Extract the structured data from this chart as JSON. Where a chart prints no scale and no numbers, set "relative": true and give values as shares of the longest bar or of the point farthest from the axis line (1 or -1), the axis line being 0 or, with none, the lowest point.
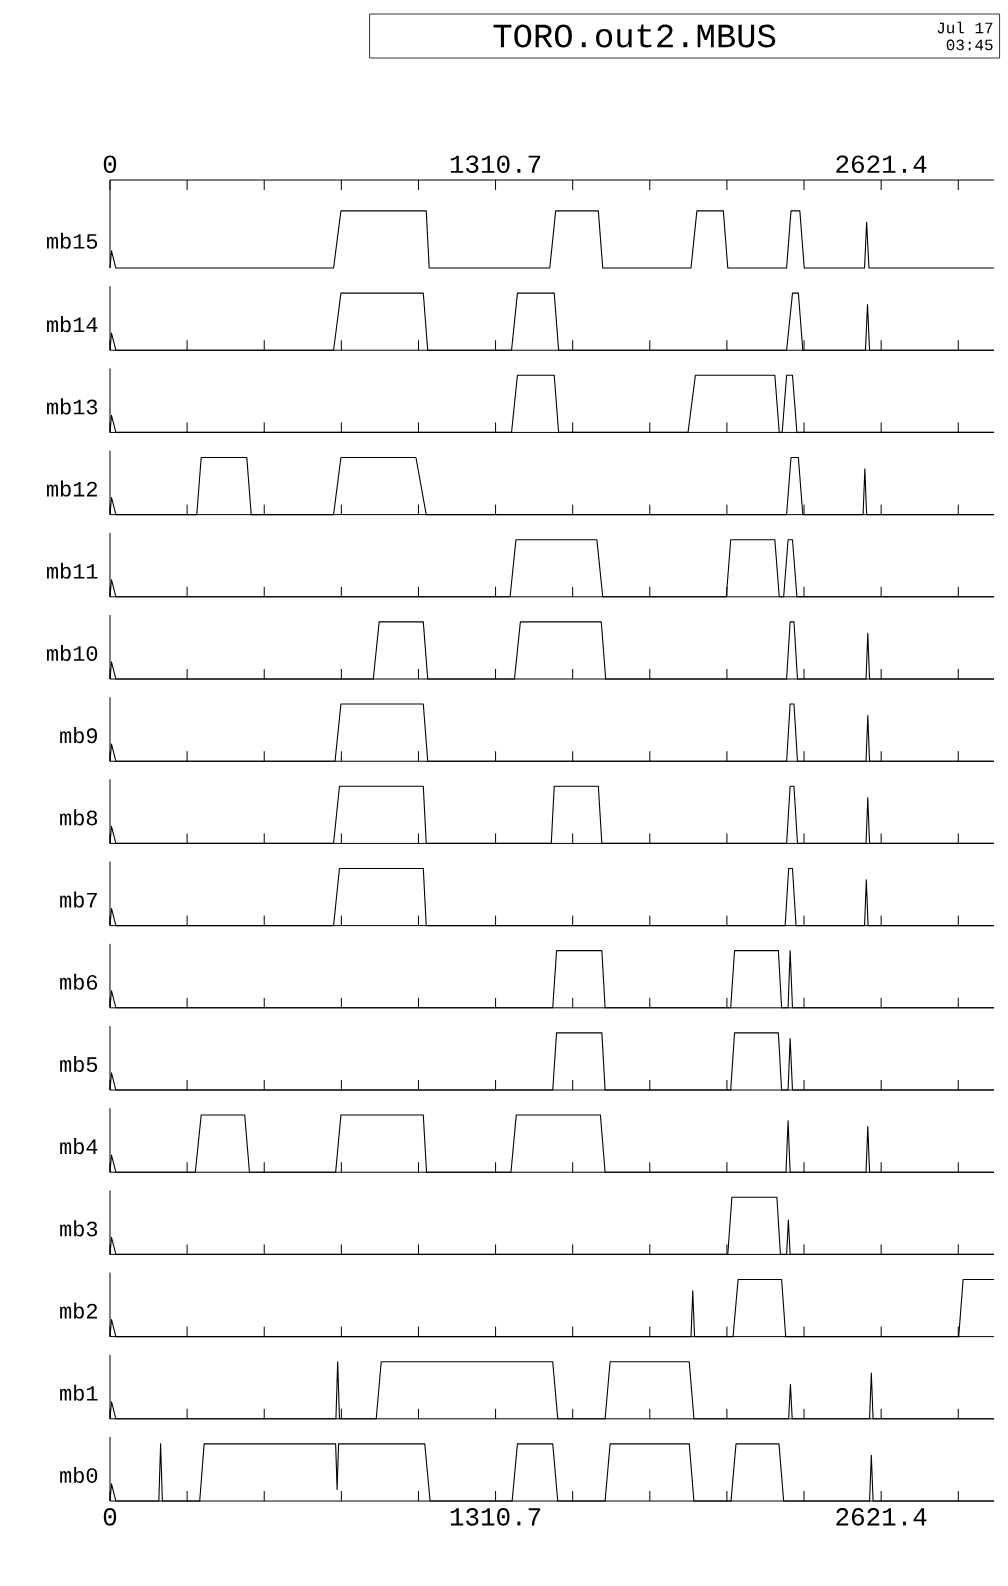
{
  "chart_data": [
    {
      "type": "line",
      "title": "TORO.out2.MBUS",
      "annotations": [
        "Jul 17",
        "03:45"
      ],
      "relative": true,
      "color": "#000000",
      "ylabel": "mb15",
      "tick_labels": "x",
      "xlim": [
        0,
        3005
      ],
      "xticks": [
        0,
        {
          "value": 262.14,
          "label": null
        },
        {
          "value": 524.28,
          "label": null
        },
        {
          "value": 786.42,
          "label": null
        },
        {
          "value": 1048.56,
          "label": null
        },
        1310.7,
        {
          "value": 1572.84,
          "label": null
        },
        {
          "value": 1834.98,
          "label": null
        },
        {
          "value": 2097.12,
          "label": null
        },
        {
          "value": 2359.26,
          "label": null
        },
        2621.4,
        {
          "value": 2883.54,
          "label": null
        }
      ],
      "x": [
        0,
        5,
        20,
        760,
        785,
        1075,
        1085,
        1495,
        1515,
        1660,
        1675,
        1975,
        1995,
        2085,
        2100,
        2300,
        2315,
        2345,
        2360,
        2565,
        2572,
        2580,
        3005
      ],
      "values": [
        0,
        0.3,
        0,
        0,
        1,
        1,
        0,
        0,
        1,
        1,
        0,
        0,
        1,
        1,
        0,
        0,
        1,
        1,
        0,
        0,
        0.8,
        0,
        0
      ]
    },
    {
      "type": "line",
      "relative": true,
      "color": "#000000",
      "ylabel": "mb14",
      "tick_labels": false,
      "xlim": [
        0,
        3005
      ],
      "xticks": [
        0,
        {
          "value": 262.14,
          "label": null
        },
        {
          "value": 524.28,
          "label": null
        },
        {
          "value": 786.42,
          "label": null
        },
        {
          "value": 1048.56,
          "label": null
        },
        1310.7,
        {
          "value": 1572.84,
          "label": null
        },
        {
          "value": 1834.98,
          "label": null
        },
        {
          "value": 2097.12,
          "label": null
        },
        {
          "value": 2359.26,
          "label": null
        },
        2621.4,
        {
          "value": 2883.54,
          "label": null
        }
      ],
      "x": [
        0,
        5,
        20,
        760,
        785,
        1065,
        1080,
        1365,
        1385,
        1510,
        1525,
        2300,
        2320,
        2340,
        2355,
        2568,
        2575,
        2582,
        3005
      ],
      "values": [
        0,
        0.3,
        0,
        0,
        1,
        1,
        0,
        0,
        1,
        1,
        0,
        0,
        1,
        1,
        0,
        0,
        0.8,
        0,
        0
      ]
    },
    {
      "type": "line",
      "relative": true,
      "color": "#000000",
      "ylabel": "mb13",
      "tick_labels": false,
      "xlim": [
        0,
        3005
      ],
      "xticks": [
        0,
        {
          "value": 262.14,
          "label": null
        },
        {
          "value": 524.28,
          "label": null
        },
        {
          "value": 786.42,
          "label": null
        },
        {
          "value": 1048.56,
          "label": null
        },
        1310.7,
        {
          "value": 1572.84,
          "label": null
        },
        {
          "value": 1834.98,
          "label": null
        },
        {
          "value": 2097.12,
          "label": null
        },
        {
          "value": 2359.26,
          "label": null
        },
        2621.4,
        {
          "value": 2883.54,
          "label": null
        }
      ],
      "x": [
        0,
        5,
        20,
        1365,
        1385,
        1510,
        1525,
        1965,
        1990,
        2260,
        2275,
        2285,
        2300,
        2320,
        2335,
        3005
      ],
      "values": [
        0,
        0.3,
        0,
        0,
        1,
        1,
        0,
        0,
        1,
        1,
        0,
        0,
        1,
        1,
        0,
        0
      ]
    },
    {
      "type": "line",
      "relative": true,
      "color": "#000000",
      "ylabel": "mb12",
      "tick_labels": false,
      "xlim": [
        0,
        3005
      ],
      "xticks": [
        0,
        {
          "value": 262.14,
          "label": null
        },
        {
          "value": 524.28,
          "label": null
        },
        {
          "value": 786.42,
          "label": null
        },
        {
          "value": 1048.56,
          "label": null
        },
        1310.7,
        {
          "value": 1572.84,
          "label": null
        },
        {
          "value": 1834.98,
          "label": null
        },
        {
          "value": 2097.12,
          "label": null
        },
        {
          "value": 2359.26,
          "label": null
        },
        2621.4,
        {
          "value": 2883.54,
          "label": null
        }
      ],
      "x": [
        0,
        5,
        20,
        295,
        310,
        465,
        480,
        760,
        785,
        1040,
        1075,
        2300,
        2315,
        2340,
        2355,
        2560,
        2566,
        2572,
        3005
      ],
      "values": [
        0,
        0.3,
        0,
        0,
        1,
        1,
        0,
        0,
        1,
        1,
        0,
        0,
        1,
        1,
        0,
        0,
        0.8,
        0,
        0
      ]
    },
    {
      "type": "line",
      "relative": true,
      "color": "#000000",
      "ylabel": "mb11",
      "tick_labels": false,
      "xlim": [
        0,
        3005
      ],
      "xticks": [
        0,
        {
          "value": 262.14,
          "label": null
        },
        {
          "value": 524.28,
          "label": null
        },
        {
          "value": 786.42,
          "label": null
        },
        {
          "value": 1048.56,
          "label": null
        },
        1310.7,
        {
          "value": 1572.84,
          "label": null
        },
        {
          "value": 1834.98,
          "label": null
        },
        {
          "value": 2097.12,
          "label": null
        },
        {
          "value": 2359.26,
          "label": null
        },
        2621.4,
        {
          "value": 2883.54,
          "label": null
        }
      ],
      "x": [
        0,
        5,
        20,
        1360,
        1380,
        1655,
        1675,
        2095,
        2110,
        2260,
        2275,
        2290,
        2305,
        2320,
        2335,
        3005
      ],
      "values": [
        0,
        0.3,
        0,
        0,
        1,
        1,
        0,
        0,
        1,
        1,
        0,
        0,
        1,
        1,
        0,
        0
      ]
    },
    {
      "type": "line",
      "relative": true,
      "color": "#000000",
      "ylabel": "mb10",
      "tick_labels": false,
      "xlim": [
        0,
        3005
      ],
      "xticks": [
        0,
        {
          "value": 262.14,
          "label": null
        },
        {
          "value": 524.28,
          "label": null
        },
        {
          "value": 786.42,
          "label": null
        },
        {
          "value": 1048.56,
          "label": null
        },
        1310.7,
        {
          "value": 1572.84,
          "label": null
        },
        {
          "value": 1834.98,
          "label": null
        },
        {
          "value": 2097.12,
          "label": null
        },
        {
          "value": 2359.26,
          "label": null
        },
        2621.4,
        {
          "value": 2883.54,
          "label": null
        }
      ],
      "x": [
        0,
        5,
        20,
        895,
        915,
        1065,
        1080,
        1375,
        1395,
        1670,
        1685,
        2300,
        2312,
        2325,
        2337,
        2570,
        2576,
        2582,
        3005
      ],
      "values": [
        0,
        0.3,
        0,
        0,
        1,
        1,
        0,
        0,
        1,
        1,
        0,
        0,
        1,
        1,
        0,
        0,
        0.8,
        0,
        0
      ]
    },
    {
      "type": "line",
      "relative": true,
      "color": "#000000",
      "ylabel": "mb9",
      "tick_labels": false,
      "xlim": [
        0,
        3005
      ],
      "xticks": [
        0,
        {
          "value": 262.14,
          "label": null
        },
        {
          "value": 524.28,
          "label": null
        },
        {
          "value": 786.42,
          "label": null
        },
        {
          "value": 1048.56,
          "label": null
        },
        1310.7,
        {
          "value": 1572.84,
          "label": null
        },
        {
          "value": 1834.98,
          "label": null
        },
        {
          "value": 2097.12,
          "label": null
        },
        {
          "value": 2359.26,
          "label": null
        },
        2621.4,
        {
          "value": 2883.54,
          "label": null
        }
      ],
      "x": [
        0,
        5,
        20,
        765,
        785,
        1065,
        1080,
        2300,
        2312,
        2325,
        2337,
        2570,
        2576,
        2582,
        3005
      ],
      "values": [
        0,
        0.3,
        0,
        0,
        1,
        1,
        0,
        0,
        1,
        1,
        0,
        0,
        0.8,
        0,
        0
      ]
    },
    {
      "type": "line",
      "relative": true,
      "color": "#000000",
      "ylabel": "mb8",
      "tick_labels": false,
      "xlim": [
        0,
        3005
      ],
      "xticks": [
        0,
        {
          "value": 262.14,
          "label": null
        },
        {
          "value": 524.28,
          "label": null
        },
        {
          "value": 786.42,
          "label": null
        },
        {
          "value": 1048.56,
          "label": null
        },
        1310.7,
        {
          "value": 1572.84,
          "label": null
        },
        {
          "value": 1834.98,
          "label": null
        },
        {
          "value": 2097.12,
          "label": null
        },
        {
          "value": 2359.26,
          "label": null
        },
        2621.4,
        {
          "value": 2883.54,
          "label": null
        }
      ],
      "x": [
        0,
        5,
        20,
        760,
        780,
        1065,
        1075,
        1500,
        1510,
        1660,
        1672,
        2300,
        2312,
        2325,
        2337,
        2570,
        2576,
        2582,
        3005
      ],
      "values": [
        0,
        0.3,
        0,
        0,
        1,
        1,
        0,
        0,
        1,
        1,
        0,
        0,
        1,
        1,
        0,
        0,
        0.8,
        0,
        0
      ]
    },
    {
      "type": "line",
      "relative": true,
      "color": "#000000",
      "ylabel": "mb7",
      "tick_labels": false,
      "xlim": [
        0,
        3005
      ],
      "xticks": [
        0,
        {
          "value": 262.14,
          "label": null
        },
        {
          "value": 524.28,
          "label": null
        },
        {
          "value": 786.42,
          "label": null
        },
        {
          "value": 1048.56,
          "label": null
        },
        1310.7,
        {
          "value": 1572.84,
          "label": null
        },
        {
          "value": 1834.98,
          "label": null
        },
        {
          "value": 2097.12,
          "label": null
        },
        {
          "value": 2359.26,
          "label": null
        },
        2621.4,
        {
          "value": 2883.54,
          "label": null
        }
      ],
      "x": [
        0,
        5,
        20,
        760,
        780,
        1065,
        1075,
        2295,
        2307,
        2320,
        2332,
        2565,
        2571,
        2577,
        3005
      ],
      "values": [
        0,
        0.3,
        0,
        0,
        1,
        1,
        0,
        0,
        1,
        1,
        0,
        0,
        0.8,
        0,
        0
      ]
    },
    {
      "type": "line",
      "relative": true,
      "color": "#000000",
      "ylabel": "mb6",
      "tick_labels": false,
      "xlim": [
        0,
        3005
      ],
      "xticks": [
        0,
        {
          "value": 262.14,
          "label": null
        },
        {
          "value": 524.28,
          "label": null
        },
        {
          "value": 786.42,
          "label": null
        },
        {
          "value": 1048.56,
          "label": null
        },
        1310.7,
        {
          "value": 1572.84,
          "label": null
        },
        {
          "value": 1834.98,
          "label": null
        },
        {
          "value": 2097.12,
          "label": null
        },
        {
          "value": 2359.26,
          "label": null
        },
        2621.4,
        {
          "value": 2883.54,
          "label": null
        }
      ],
      "x": [
        0,
        5,
        20,
        1505,
        1518,
        1672,
        1683,
        2110,
        2123,
        2272,
        2283,
        2305,
        2312,
        2320,
        3005
      ],
      "values": [
        0,
        0.3,
        0,
        0,
        1,
        1,
        0,
        0,
        1,
        1,
        0,
        0,
        1,
        0,
        0
      ]
    },
    {
      "type": "line",
      "relative": true,
      "color": "#000000",
      "ylabel": "mb5",
      "tick_labels": false,
      "xlim": [
        0,
        3005
      ],
      "xticks": [
        0,
        {
          "value": 262.14,
          "label": null
        },
        {
          "value": 524.28,
          "label": null
        },
        {
          "value": 786.42,
          "label": null
        },
        {
          "value": 1048.56,
          "label": null
        },
        1310.7,
        {
          "value": 1572.84,
          "label": null
        },
        {
          "value": 1834.98,
          "label": null
        },
        {
          "value": 2097.12,
          "label": null
        },
        {
          "value": 2359.26,
          "label": null
        },
        2621.4,
        {
          "value": 2883.54,
          "label": null
        }
      ],
      "x": [
        0,
        5,
        20,
        1505,
        1518,
        1672,
        1683,
        2110,
        2123,
        2272,
        2283,
        2305,
        2312,
        2320,
        3005
      ],
      "values": [
        0,
        0.3,
        0,
        0,
        1,
        1,
        0,
        0,
        1,
        1,
        0,
        0,
        0.9,
        0,
        0
      ]
    },
    {
      "type": "line",
      "relative": true,
      "color": "#000000",
      "ylabel": "mb4",
      "tick_labels": false,
      "xlim": [
        0,
        3005
      ],
      "xticks": [
        0,
        {
          "value": 262.14,
          "label": null
        },
        {
          "value": 524.28,
          "label": null
        },
        {
          "value": 786.42,
          "label": null
        },
        {
          "value": 1048.56,
          "label": null
        },
        1310.7,
        {
          "value": 1572.84,
          "label": null
        },
        {
          "value": 1834.98,
          "label": null
        },
        {
          "value": 2097.12,
          "label": null
        },
        {
          "value": 2359.26,
          "label": null
        },
        2621.4,
        {
          "value": 2883.54,
          "label": null
        }
      ],
      "x": [
        0,
        5,
        20,
        290,
        310,
        458,
        474,
        767,
        785,
        1065,
        1076,
        1363,
        1381,
        1667,
        1683,
        2298,
        2305,
        2312,
        2570,
        2576,
        2582,
        3005
      ],
      "values": [
        0,
        0.3,
        0,
        0,
        1,
        1,
        0,
        0,
        1,
        1,
        0,
        0,
        1,
        1,
        0,
        0,
        0.9,
        0,
        0,
        0.8,
        0,
        0
      ]
    },
    {
      "type": "line",
      "relative": true,
      "color": "#000000",
      "ylabel": "mb3",
      "tick_labels": false,
      "xlim": [
        0,
        3005
      ],
      "xticks": [
        0,
        {
          "value": 262.14,
          "label": null
        },
        {
          "value": 524.28,
          "label": null
        },
        {
          "value": 786.42,
          "label": null
        },
        {
          "value": 1048.56,
          "label": null
        },
        1310.7,
        {
          "value": 1572.84,
          "label": null
        },
        {
          "value": 1834.98,
          "label": null
        },
        {
          "value": 2097.12,
          "label": null
        },
        {
          "value": 2359.26,
          "label": null
        },
        2621.4,
        {
          "value": 2883.54,
          "label": null
        }
      ],
      "x": [
        0,
        5,
        20,
        2100,
        2114,
        2267,
        2279,
        2300,
        2306,
        2312,
        3005
      ],
      "values": [
        0,
        0.3,
        0,
        0,
        1,
        1,
        0,
        0,
        0.6,
        0,
        0
      ]
    },
    {
      "type": "line",
      "relative": true,
      "color": "#000000",
      "ylabel": "mb2",
      "tick_labels": false,
      "xlim": [
        0,
        3005
      ],
      "xticks": [
        0,
        {
          "value": 262.14,
          "label": null
        },
        {
          "value": 524.28,
          "label": null
        },
        {
          "value": 786.42,
          "label": null
        },
        {
          "value": 1048.56,
          "label": null
        },
        1310.7,
        {
          "value": 1572.84,
          "label": null
        },
        {
          "value": 1834.98,
          "label": null
        },
        {
          "value": 2097.12,
          "label": null
        },
        {
          "value": 2359.26,
          "label": null
        },
        2621.4,
        {
          "value": 2883.54,
          "label": null
        }
      ],
      "x": [
        0,
        5,
        20,
        1975,
        1981,
        1987,
        2118,
        2135,
        2283,
        2297,
        2885,
        2900,
        3005
      ],
      "values": [
        0,
        0.3,
        0,
        0,
        0.8,
        0,
        0,
        1,
        1,
        0,
        0,
        1,
        1
      ]
    },
    {
      "type": "line",
      "relative": true,
      "color": "#000000",
      "ylabel": "mb1",
      "tick_labels": false,
      "xlim": [
        0,
        3005
      ],
      "xticks": [
        0,
        {
          "value": 262.14,
          "label": null
        },
        {
          "value": 524.28,
          "label": null
        },
        {
          "value": 786.42,
          "label": null
        },
        {
          "value": 1048.56,
          "label": null
        },
        1310.7,
        {
          "value": 1572.84,
          "label": null
        },
        {
          "value": 1834.98,
          "label": null
        },
        {
          "value": 2097.12,
          "label": null
        },
        {
          "value": 2359.26,
          "label": null
        },
        2621.4,
        {
          "value": 2883.54,
          "label": null
        }
      ],
      "x": [
        0,
        5,
        20,
        768,
        774,
        780,
        905,
        922,
        1505,
        1522,
        1683,
        1700,
        1969,
        1985,
        2307,
        2313,
        2319,
        2582,
        2588,
        2594,
        3005
      ],
      "values": [
        0,
        0.3,
        0,
        0,
        1,
        0,
        0,
        1,
        1,
        0,
        0,
        1,
        1,
        0,
        0,
        0.6,
        0,
        0,
        0.8,
        0,
        0
      ]
    },
    {
      "type": "line",
      "relative": true,
      "color": "#000000",
      "ylabel": "mb0",
      "tick_labels": "x",
      "xlim": [
        0,
        3005
      ],
      "xticks": [
        0,
        {
          "value": 262.14,
          "label": null
        },
        {
          "value": 524.28,
          "label": null
        },
        {
          "value": 786.42,
          "label": null
        },
        {
          "value": 1048.56,
          "label": null
        },
        1310.7,
        {
          "value": 1572.84,
          "label": null
        },
        {
          "value": 1834.98,
          "label": null
        },
        {
          "value": 2097.12,
          "label": null
        },
        {
          "value": 2359.26,
          "label": null
        },
        2621.4,
        {
          "value": 2883.54,
          "label": null
        }
      ],
      "x": [
        0,
        5,
        20,
        166,
        172,
        178,
        305,
        320,
        767,
        772,
        777,
        1070,
        1088,
        1367,
        1385,
        1505,
        1522,
        1683,
        1700,
        1969,
        1985,
        2111,
        2128,
        2274,
        2290,
        2582,
        2588,
        2594,
        3005
      ],
      "values": [
        0,
        0.3,
        0,
        0,
        1,
        0,
        0,
        1,
        1,
        0.2,
        1,
        1,
        0,
        0,
        1,
        1,
        0,
        0,
        1,
        1,
        0,
        0,
        1,
        1,
        0,
        0,
        0.8,
        0,
        0
      ]
    }
  ]
}
